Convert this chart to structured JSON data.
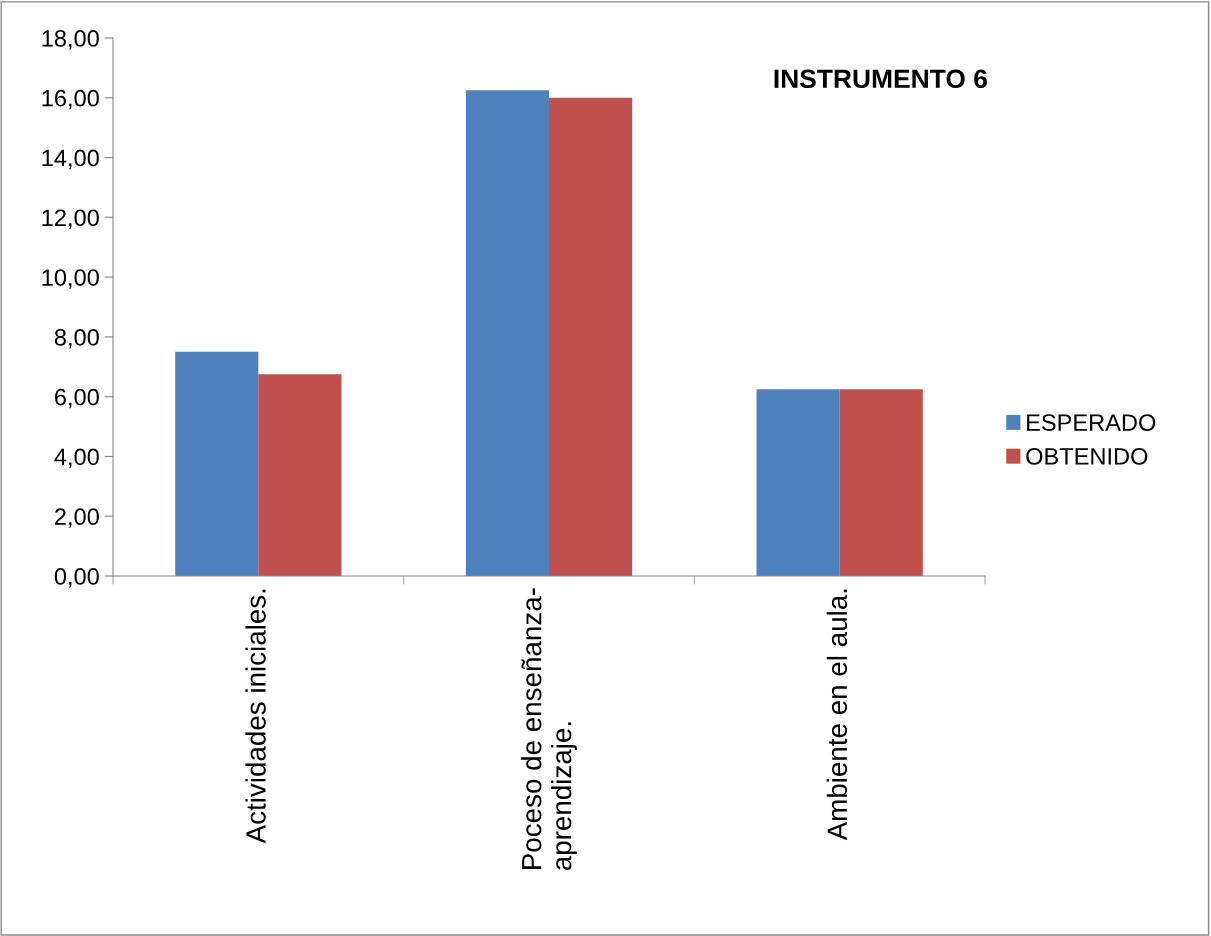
{
  "chart_data": {
    "type": "bar",
    "title": "INSTRUMENTO 6",
    "categories": [
      "Actividades iniciales.",
      "Poceso de enseñanza-\naprendizaje.",
      "Ambiente en el aula."
    ],
    "series": [
      {
        "name": "ESPERADO",
        "color": "#4f81bd",
        "values": [
          7.5,
          16.25,
          6.25
        ]
      },
      {
        "name": "OBTENIDO",
        "color": "#c0504d",
        "values": [
          6.75,
          16.0,
          6.25
        ]
      }
    ],
    "ylim": [
      0,
      18
    ],
    "yticks": [
      {
        "value": 0,
        "label": "0,00"
      },
      {
        "value": 2,
        "label": "2,00"
      },
      {
        "value": 4,
        "label": "4,00"
      },
      {
        "value": 6,
        "label": "6,00"
      },
      {
        "value": 8,
        "label": "8,00"
      },
      {
        "value": 10,
        "label": "10,00"
      },
      {
        "value": 12,
        "label": "12,00"
      },
      {
        "value": 14,
        "label": "14,00"
      },
      {
        "value": 16,
        "label": "16,00"
      },
      {
        "value": 18,
        "label": "18,00"
      }
    ],
    "grid": false,
    "legend": "right"
  }
}
